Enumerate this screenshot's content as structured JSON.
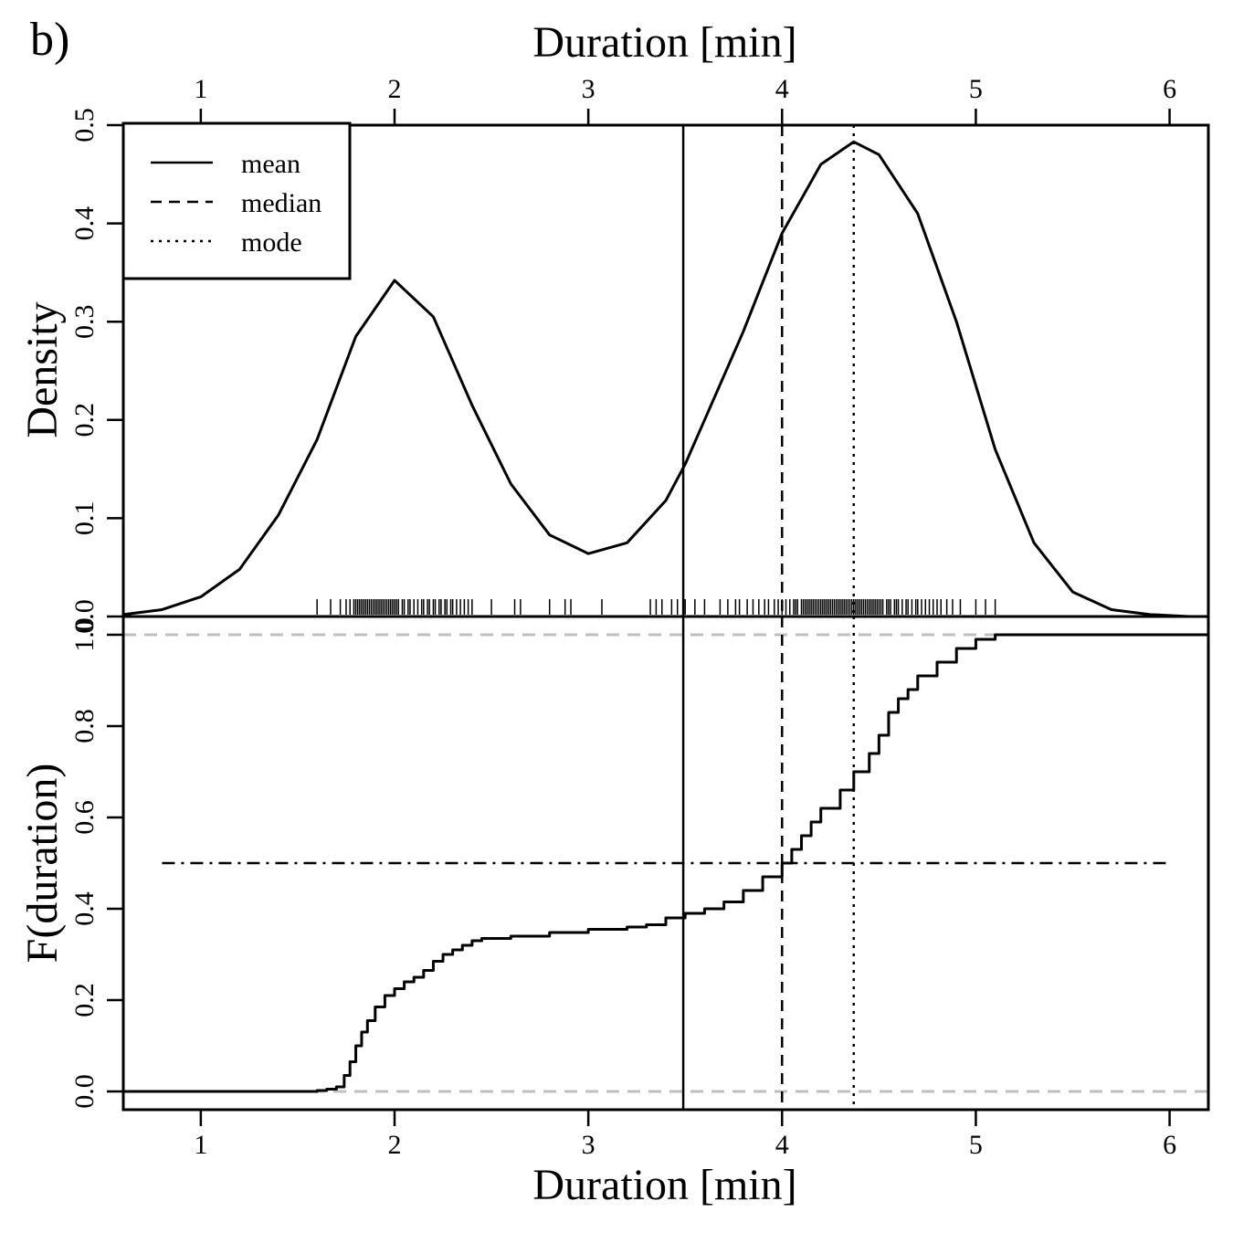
{
  "panel_label": "b)",
  "colors": {
    "ink": "#000000",
    "reference": "#bfbfbf"
  },
  "chart_data": [
    {
      "type": "line",
      "panel": "top",
      "title": "",
      "xlabel": "Duration [min]",
      "ylabel": "Density",
      "xlim": [
        0.6,
        6.2
      ],
      "ylim": [
        0.0,
        0.5
      ],
      "x_ticks": [
        1,
        2,
        3,
        4,
        5,
        6
      ],
      "y_ticks": [
        "0.0",
        "0.1",
        "0.2",
        "0.3",
        "0.4",
        "0.5"
      ],
      "series": [
        {
          "name": "density",
          "x": [
            0.6,
            0.8,
            1.0,
            1.2,
            1.4,
            1.6,
            1.8,
            2.0,
            2.2,
            2.4,
            2.6,
            2.8,
            3.0,
            3.2,
            3.4,
            3.5,
            3.6,
            3.8,
            4.0,
            4.2,
            4.37,
            4.5,
            4.7,
            4.9,
            5.1,
            5.3,
            5.5,
            5.7,
            5.9,
            6.1
          ],
          "y": [
            0.002,
            0.007,
            0.02,
            0.048,
            0.103,
            0.18,
            0.285,
            0.342,
            0.305,
            0.215,
            0.135,
            0.083,
            0.064,
            0.075,
            0.118,
            0.155,
            0.2,
            0.29,
            0.39,
            0.46,
            0.483,
            0.47,
            0.41,
            0.3,
            0.17,
            0.075,
            0.025,
            0.007,
            0.002,
            0.0
          ]
        }
      ],
      "rug": [
        1.6,
        1.67,
        1.72,
        1.75,
        1.77,
        1.79,
        1.8,
        1.81,
        1.82,
        1.83,
        1.84,
        1.85,
        1.86,
        1.87,
        1.88,
        1.89,
        1.9,
        1.91,
        1.92,
        1.93,
        1.94,
        1.95,
        1.96,
        1.97,
        1.98,
        1.99,
        2.0,
        2.01,
        2.02,
        2.04,
        2.05,
        2.07,
        2.08,
        2.1,
        2.12,
        2.14,
        2.15,
        2.17,
        2.18,
        2.2,
        2.21,
        2.23,
        2.24,
        2.26,
        2.27,
        2.29,
        2.3,
        2.32,
        2.34,
        2.36,
        2.38,
        2.4,
        2.5,
        2.62,
        2.65,
        2.8,
        2.88,
        2.91,
        3.07,
        3.32,
        3.35,
        3.38,
        3.43,
        3.46,
        3.5,
        3.55,
        3.6,
        3.68,
        3.72,
        3.76,
        3.78,
        3.82,
        3.85,
        3.88,
        3.91,
        3.93,
        3.96,
        3.98,
        4.0,
        4.02,
        4.04,
        4.06,
        4.07,
        4.08,
        4.1,
        4.11,
        4.12,
        4.13,
        4.14,
        4.15,
        4.16,
        4.17,
        4.18,
        4.19,
        4.2,
        4.21,
        4.22,
        4.23,
        4.24,
        4.25,
        4.26,
        4.27,
        4.28,
        4.29,
        4.3,
        4.31,
        4.32,
        4.33,
        4.34,
        4.35,
        4.36,
        4.37,
        4.38,
        4.39,
        4.4,
        4.41,
        4.42,
        4.43,
        4.44,
        4.45,
        4.46,
        4.47,
        4.48,
        4.49,
        4.5,
        4.51,
        4.52,
        4.54,
        4.55,
        4.56,
        4.58,
        4.59,
        4.6,
        4.62,
        4.64,
        4.65,
        4.67,
        4.69,
        4.7,
        4.72,
        4.74,
        4.76,
        4.78,
        4.8,
        4.82,
        4.85,
        4.88,
        4.92,
        5.0,
        5.05,
        5.1
      ],
      "vlines": [
        {
          "name": "mean",
          "x": 3.49,
          "style": "solid"
        },
        {
          "name": "median",
          "x": 4.0,
          "style": "dashed"
        },
        {
          "name": "mode",
          "x": 4.37,
          "style": "dotted"
        }
      ],
      "legend": {
        "position": "top-left",
        "entries": [
          {
            "label": "mean",
            "style": "solid"
          },
          {
            "label": "median",
            "style": "dashed"
          },
          {
            "label": "mode",
            "style": "dotted"
          }
        ]
      }
    },
    {
      "type": "line",
      "panel": "bottom",
      "title": "",
      "xlabel": "Duration [min]",
      "ylabel": "F(duration)",
      "xlim": [
        0.6,
        6.2
      ],
      "ylim": [
        -0.04,
        1.04
      ],
      "x_ticks": [
        1,
        2,
        3,
        4,
        5,
        6
      ],
      "y_ticks": [
        "0.0",
        "0.2",
        "0.4",
        "0.6",
        "0.8",
        "1.0"
      ],
      "series": [
        {
          "name": "ecdf",
          "step": true,
          "x": [
            0.6,
            1.6,
            1.65,
            1.7,
            1.74,
            1.77,
            1.8,
            1.83,
            1.86,
            1.9,
            1.95,
            2.0,
            2.05,
            2.1,
            2.15,
            2.2,
            2.25,
            2.3,
            2.35,
            2.4,
            2.45,
            2.6,
            2.8,
            3.0,
            3.2,
            3.3,
            3.4,
            3.5,
            3.6,
            3.7,
            3.8,
            3.9,
            4.0,
            4.05,
            4.1,
            4.15,
            4.2,
            4.3,
            4.37,
            4.45,
            4.5,
            4.55,
            4.6,
            4.65,
            4.7,
            4.8,
            4.9,
            5.0,
            5.1,
            6.2
          ],
          "y": [
            0.0,
            0.002,
            0.005,
            0.01,
            0.035,
            0.065,
            0.1,
            0.13,
            0.155,
            0.185,
            0.21,
            0.225,
            0.24,
            0.25,
            0.265,
            0.285,
            0.3,
            0.31,
            0.32,
            0.33,
            0.335,
            0.34,
            0.348,
            0.355,
            0.36,
            0.365,
            0.38,
            0.39,
            0.4,
            0.415,
            0.44,
            0.47,
            0.5,
            0.53,
            0.56,
            0.59,
            0.62,
            0.66,
            0.7,
            0.74,
            0.78,
            0.83,
            0.86,
            0.88,
            0.91,
            0.94,
            0.97,
            0.99,
            1.0,
            1.0
          ]
        }
      ],
      "vlines": [
        {
          "name": "mean",
          "x": 3.49,
          "style": "solid"
        },
        {
          "name": "median",
          "x": 4.0,
          "style": "dashed"
        },
        {
          "name": "mode",
          "x": 4.37,
          "style": "dotted"
        }
      ],
      "hlines": [
        {
          "name": "lower-bound",
          "y": 0.0,
          "style": "gray-dashed"
        },
        {
          "name": "upper-bound",
          "y": 1.0,
          "style": "gray-dashed"
        },
        {
          "name": "half",
          "y": 0.5,
          "style": "dotdash",
          "x_from": 0.8,
          "x_to": 6.0
        }
      ]
    }
  ]
}
